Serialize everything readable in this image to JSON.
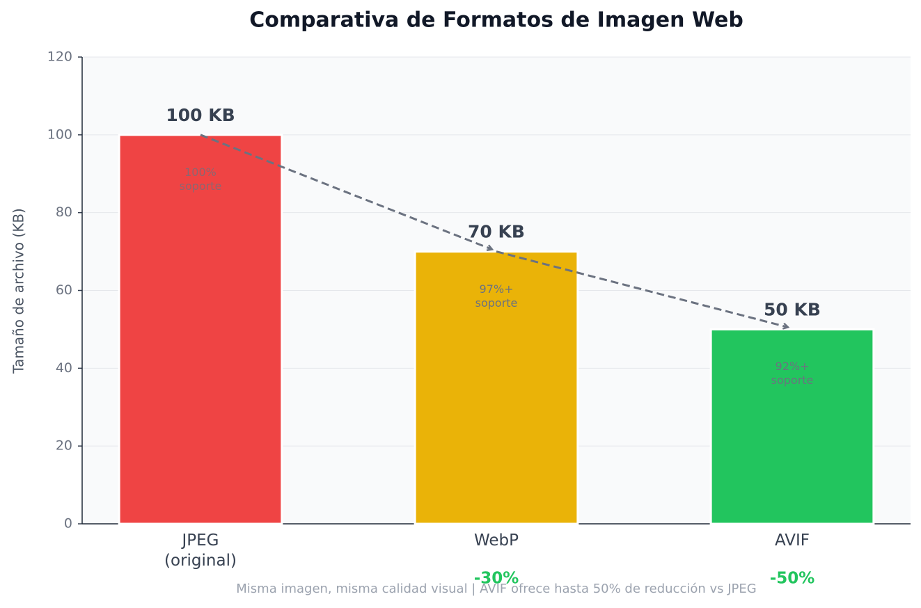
{
  "chart_data": {
    "type": "bar",
    "title": "Comparativa de Formatos de Imagen Web",
    "y_label": "Tamaño de archivo (KB)",
    "categories": [
      "JPEG\n(original)",
      "WebP",
      "AVIF"
    ],
    "values": [
      100,
      70,
      50
    ],
    "value_labels": [
      "100 KB",
      "70 KB",
      "50 KB"
    ],
    "colors": [
      "#ef4444",
      "#eab308",
      "#22c55e"
    ],
    "support_labels": [
      "100%\nsoporte",
      "97%+\nsoporte",
      "92%+\nsoporte"
    ],
    "reduction_labels": [
      null,
      "-30%",
      "-50%"
    ],
    "note": "Misma imagen, misma calidad visual | AVIF ofrece hasta 50% de reducción vs JPEG",
    "ylim": [
      0,
      120
    ],
    "yticks": [
      0,
      20,
      40,
      60,
      80,
      100,
      120
    ],
    "grid": true
  }
}
